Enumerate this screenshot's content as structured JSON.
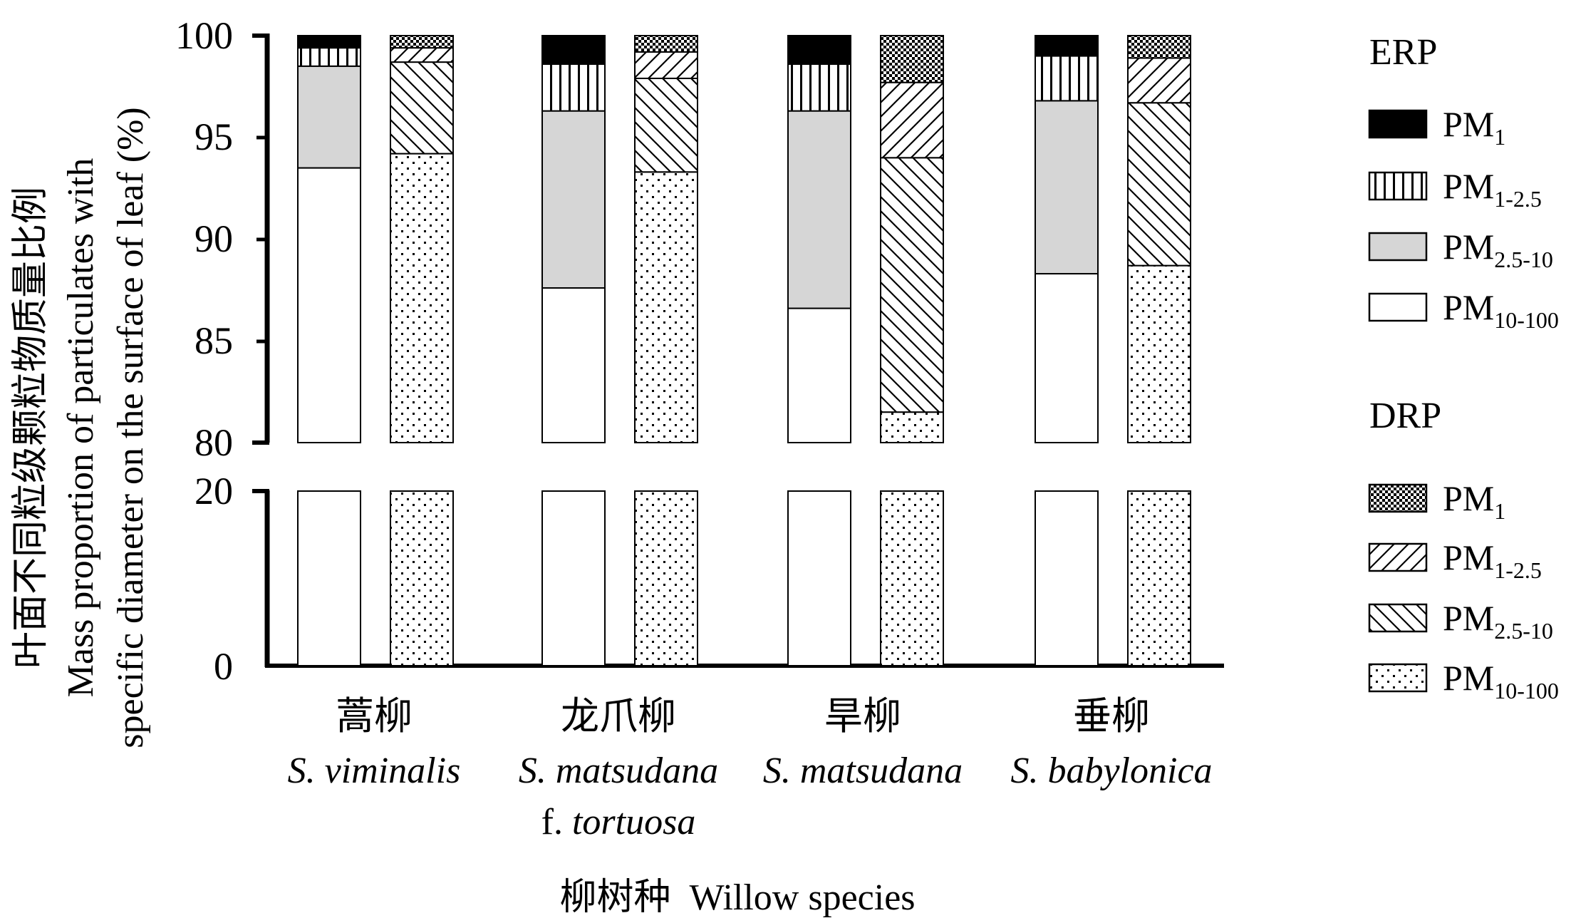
{
  "chart_data": {
    "type": "bar",
    "stacked": true,
    "categories": [
      {
        "cn": "蒿柳",
        "latin": "S. viminalis",
        "latin_line2_prefix": "",
        "latin_line2": ""
      },
      {
        "cn": "龙爪柳",
        "latin": "S. matsudana",
        "latin_line2_prefix": "f. ",
        "latin_line2": "tortuosa"
      },
      {
        "cn": "旱柳",
        "latin": "S. matsudana",
        "latin_line2_prefix": "",
        "latin_line2": ""
      },
      {
        "cn": "垂柳",
        "latin": "S. babylonica",
        "latin_line2_prefix": "",
        "latin_line2": ""
      }
    ],
    "groups": [
      {
        "title": "ERP",
        "series": [
          {
            "name": "PM",
            "sub": "10-100",
            "fill": "white",
            "values": [
              93.5,
              87.6,
              86.6,
              88.3
            ]
          },
          {
            "name": "PM",
            "sub": "2.5-10",
            "fill": "gray",
            "values": [
              5.0,
              8.7,
              9.7,
              8.5
            ]
          },
          {
            "name": "PM",
            "sub": "1-2.5",
            "fill": "vlines",
            "values": [
              0.9,
              2.3,
              2.3,
              2.2
            ]
          },
          {
            "name": "PM",
            "sub": "1",
            "fill": "black",
            "values": [
              0.6,
              1.4,
              1.4,
              1.0
            ]
          }
        ]
      },
      {
        "title": "DRP",
        "series": [
          {
            "name": "PM",
            "sub": "10-100",
            "fill": "dots",
            "values": [
              94.2,
              93.3,
              81.5,
              88.7
            ]
          },
          {
            "name": "PM",
            "sub": "2.5-10",
            "fill": "backslash",
            "values": [
              4.5,
              4.6,
              12.5,
              8.0
            ]
          },
          {
            "name": "PM",
            "sub": "1-2.5",
            "fill": "slash",
            "values": [
              0.7,
              1.3,
              3.7,
              2.2
            ]
          },
          {
            "name": "PM",
            "sub": "1",
            "fill": "checker",
            "values": [
              0.6,
              0.8,
              2.3,
              1.1
            ]
          }
        ]
      }
    ],
    "y_ticks_upper": [
      "100",
      "95",
      "90",
      "85",
      "80"
    ],
    "y_ticks_lower": [
      "20",
      "0"
    ],
    "ylim_upper": [
      80,
      100
    ],
    "ylim_lower": [
      0,
      20
    ],
    "axis_break": true,
    "ylabel_cn": "叶面不同粒级颗粒物质量比例",
    "ylabel_en_line1": "Mass proportion of particulates with",
    "ylabel_en_line2": "specific diameter on the surface of leaf (%)",
    "xlabel": "柳树种  Willow species",
    "legend_position": "right",
    "colors": {
      "gray": "#d6d6d6",
      "black": "#000000",
      "white": "#ffffff"
    }
  }
}
